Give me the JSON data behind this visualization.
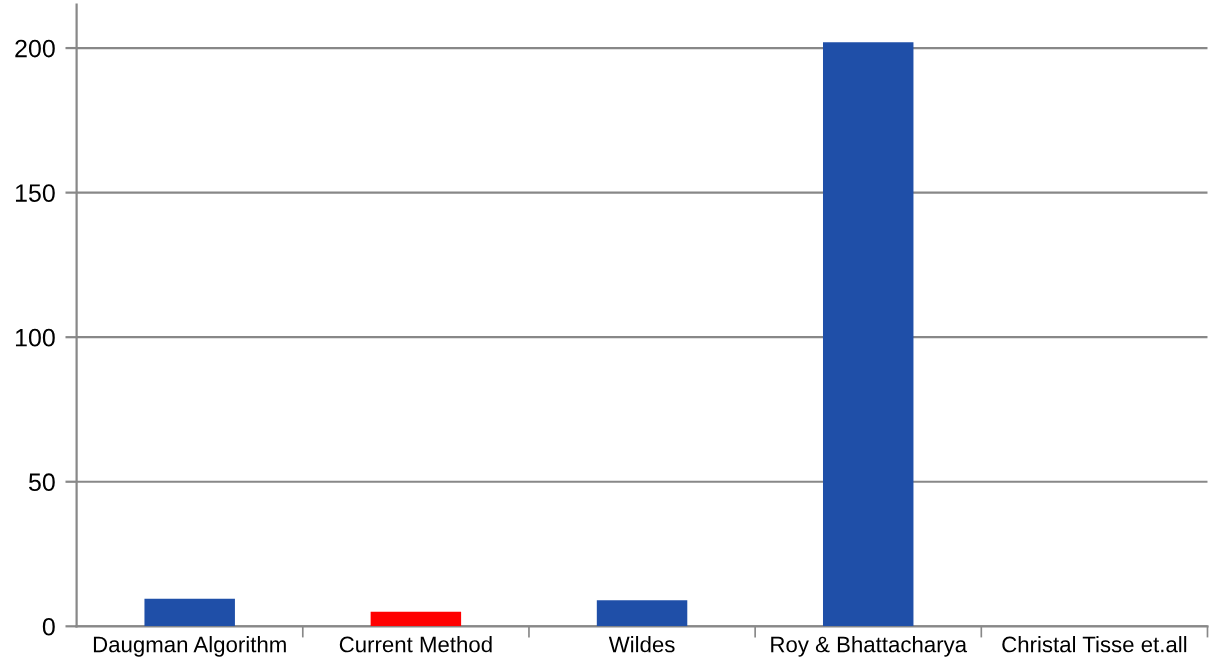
{
  "chart_data": {
    "type": "bar",
    "categories": [
      "Daugman Algorithm",
      "Current Method",
      "Wildes",
      "Roy & Bhattacharya",
      "Christal Tisse et.all"
    ],
    "values": [
      9.5,
      5,
      9,
      202,
      0
    ],
    "colors": [
      "#1f4fa8",
      "#ff0000",
      "#1f4fa8",
      "#1f4fa8",
      "#1f4fa8"
    ],
    "ylim": [
      0,
      215
    ],
    "yticks": [
      0,
      50,
      100,
      150,
      200
    ],
    "grid": "y"
  }
}
